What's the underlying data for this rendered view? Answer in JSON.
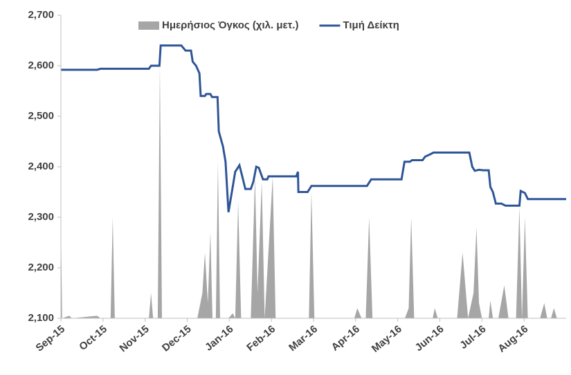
{
  "chart_data": {
    "type": "line",
    "ylim": [
      2100,
      2700
    ],
    "yticks": [
      {
        "value": 2100,
        "label": "2,100"
      },
      {
        "value": 2200,
        "label": "2,200"
      },
      {
        "value": 2300,
        "label": "2,300"
      },
      {
        "value": 2400,
        "label": "2,400"
      },
      {
        "value": 2500,
        "label": "2,500"
      },
      {
        "value": 2600,
        "label": "2,600"
      },
      {
        "value": 2700,
        "label": "2,700"
      }
    ],
    "xlim": [
      0,
      12
    ],
    "xticks": [
      {
        "value": 0,
        "label": "Sep-15"
      },
      {
        "value": 1,
        "label": "Oct-15"
      },
      {
        "value": 2,
        "label": "Nov-15"
      },
      {
        "value": 3,
        "label": "Dec-15"
      },
      {
        "value": 4,
        "label": "Jan-16"
      },
      {
        "value": 5,
        "label": "Feb-16"
      },
      {
        "value": 6,
        "label": "Mar-16"
      },
      {
        "value": 7,
        "label": "Apr-16"
      },
      {
        "value": 8,
        "label": "May-16"
      },
      {
        "value": 9,
        "label": "Jun-16"
      },
      {
        "value": 10,
        "label": "Jul-16"
      },
      {
        "value": 11,
        "label": "Aug-16"
      }
    ],
    "legend": "top",
    "series": [
      {
        "name": "Ημερήσιος Όγκος (χιλ. μετ.)",
        "type": "area",
        "color": "#a6a6a6",
        "x": [
          0,
          0.03,
          0.2,
          0.26,
          0.86,
          0.94,
          1.18,
          1.23,
          1.28,
          2.09,
          2.14,
          2.19,
          2.3,
          2.35,
          2.4,
          3.24,
          3.36,
          3.42,
          3.49,
          3.55,
          3.6,
          3.68,
          3.73,
          3.78,
          3.98,
          4.08,
          4.14,
          4.21,
          4.28,
          4.51,
          4.61,
          4.67,
          4.77,
          4.84,
          5.03,
          5.1,
          5.89,
          5.95,
          6.02,
          6.97,
          7.04,
          7.14,
          7.24,
          7.32,
          7.4,
          8.17,
          8.26,
          8.32,
          8.39,
          8.83,
          8.88,
          8.95,
          9.41,
          9.54,
          9.67,
          9.8,
          9.87,
          9.93,
          10,
          10.16,
          10.2,
          10.26,
          10.39,
          10.53,
          10.63,
          10.81,
          10.89,
          10.95,
          11.02,
          11.09,
          11.38,
          11.48,
          11.55,
          11.64,
          11.71,
          11.78,
          12
        ],
        "values": [
          2290,
          2100,
          2105,
          2100,
          2105,
          2100,
          2100,
          2300,
          2100,
          2100,
          2150,
          2100,
          2100,
          2600,
          2100,
          2100,
          2150,
          2230,
          2130,
          2270,
          2100,
          2100,
          2410,
          2100,
          2100,
          2110,
          2100,
          2330,
          2100,
          2100,
          2380,
          2150,
          2370,
          2100,
          2380,
          2100,
          2100,
          2350,
          2100,
          2100,
          2120,
          2100,
          2100,
          2300,
          2100,
          2100,
          2120,
          2300,
          2100,
          2100,
          2120,
          2100,
          2100,
          2230,
          2100,
          2150,
          2280,
          2130,
          2100,
          2100,
          2135,
          2100,
          2100,
          2165,
          2100,
          2100,
          2320,
          2100,
          2300,
          2100,
          2100,
          2130,
          2100,
          2100,
          2120,
          2100,
          2100
        ]
      },
      {
        "name": "Τιμή Δείκτη",
        "type": "line",
        "color": "#2e5597",
        "x": [
          0,
          0.86,
          0.94,
          2.09,
          2.14,
          2.34,
          2.37,
          2.86,
          2.96,
          3.09,
          3.13,
          3.21,
          3.29,
          3.32,
          3.42,
          3.45,
          3.55,
          3.59,
          3.72,
          3.75,
          3.85,
          3.91,
          3.98,
          4.08,
          4.14,
          4.24,
          4.31,
          4.38,
          4.51,
          4.57,
          4.64,
          4.7,
          4.8,
          4.9,
          4.93,
          5.59,
          5.63,
          5.64,
          5.86,
          5.95,
          7.27,
          7.37,
          8.09,
          8.16,
          8.29,
          8.34,
          8.59,
          8.65,
          8.78,
          8.85,
          9.7,
          9.77,
          9.83,
          9.93,
          10.03,
          10.16,
          10.2,
          10.26,
          10.33,
          10.46,
          10.56,
          10.89,
          10.92,
          11.02,
          11.09,
          12
        ],
        "values": [
          2592,
          2592,
          2594,
          2594,
          2600,
          2600,
          2640,
          2640,
          2630,
          2630,
          2608,
          2600,
          2585,
          2540,
          2540,
          2544,
          2544,
          2538,
          2538,
          2470,
          2440,
          2410,
          2310,
          2360,
          2390,
          2403,
          2380,
          2356,
          2356,
          2370,
          2400,
          2398,
          2375,
          2375,
          2381,
          2381,
          2390,
          2350,
          2350,
          2362,
          2362,
          2375,
          2375,
          2410,
          2410,
          2413,
          2413,
          2420,
          2425,
          2428,
          2428,
          2400,
          2392,
          2394,
          2393,
          2393,
          2360,
          2350,
          2327,
          2327,
          2323,
          2323,
          2352,
          2348,
          2336,
          2336
        ]
      }
    ]
  }
}
